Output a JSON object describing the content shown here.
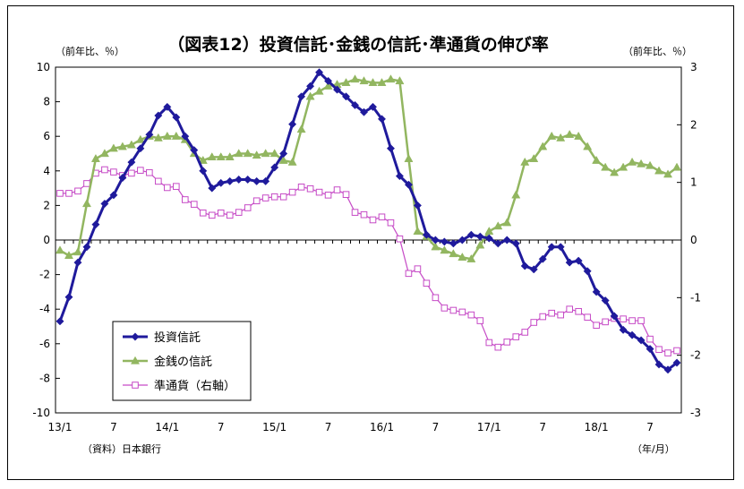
{
  "chart_data": {
    "type": "line",
    "title": "（図表12）投資信託･金銭の信託･準通貨の伸び率",
    "left_axis_unit": "（前年比、％）",
    "right_axis_unit": "（前年比、％）",
    "x_axis_unit": "（年/月）",
    "source": "（資料）日本銀行",
    "x_tick_labels": [
      "13/1",
      "7",
      "14/1",
      "7",
      "15/1",
      "7",
      "16/1",
      "7",
      "17/1",
      "7",
      "18/1",
      "7"
    ],
    "left_ylim": [
      -10,
      10
    ],
    "left_yticks": [
      "10",
      "8",
      "6",
      "4",
      "2",
      "0",
      "-2",
      "-4",
      "-6",
      "-8",
      "-10"
    ],
    "right_ylim": [
      -3,
      3
    ],
    "right_yticks": [
      "3",
      "2",
      "1",
      "0",
      "-1",
      "-2",
      "-3"
    ],
    "legend": {
      "placement": "lower-left inside"
    },
    "series": [
      {
        "name": "投資信託",
        "axis": "left",
        "color": "#1f1a9c",
        "marker": "diamond",
        "values": [
          -4.7,
          -3.3,
          -1.3,
          -0.4,
          0.9,
          2.1,
          2.6,
          3.6,
          4.5,
          5.3,
          6.1,
          7.2,
          7.7,
          7.1,
          6.0,
          5.2,
          4.0,
          3.0,
          3.3,
          3.4,
          3.5,
          3.5,
          3.4,
          3.4,
          4.2,
          5.0,
          6.7,
          8.3,
          8.9,
          9.7,
          9.2,
          8.7,
          8.3,
          7.8,
          7.4,
          7.7,
          7.0,
          5.3,
          3.7,
          3.2,
          2.0,
          0.3,
          0.0,
          -0.1,
          -0.2,
          0.0,
          0.3,
          0.2,
          0.1,
          -0.2,
          0.0,
          -0.2,
          -1.5,
          -1.7,
          -1.1,
          -0.4,
          -0.4,
          -1.3,
          -1.2,
          -1.8,
          -3.0,
          -3.5,
          -4.4,
          -5.2,
          -5.5,
          -5.8,
          -6.3,
          -7.2,
          -7.5,
          -7.1
        ]
      },
      {
        "name": "金銭の信託",
        "axis": "left",
        "color": "#92b660",
        "marker": "triangle",
        "values": [
          -0.6,
          -0.9,
          -0.7,
          2.1,
          4.7,
          5.0,
          5.3,
          5.4,
          5.5,
          5.8,
          6.0,
          5.9,
          6.0,
          6.0,
          5.8,
          5.0,
          4.6,
          4.8,
          4.8,
          4.8,
          5.0,
          5.0,
          4.9,
          5.0,
          5.0,
          4.6,
          4.5,
          6.4,
          8.3,
          8.6,
          8.9,
          9.0,
          9.1,
          9.3,
          9.2,
          9.1,
          9.1,
          9.3,
          9.2,
          4.7,
          0.5,
          0.2,
          -0.4,
          -0.6,
          -0.8,
          -1.0,
          -1.1,
          -0.3,
          0.5,
          0.8,
          1.0,
          2.6,
          4.5,
          4.7,
          5.4,
          6.0,
          5.9,
          6.1,
          6.0,
          5.4,
          4.6,
          4.2,
          3.9,
          4.2,
          4.5,
          4.4,
          4.3,
          4.0,
          3.8,
          4.2
        ]
      },
      {
        "name": "準通貨（右軸）",
        "axis": "right",
        "color": "#c64bc6",
        "marker": "square-open",
        "values": [
          0.81,
          0.81,
          0.85,
          0.98,
          1.16,
          1.22,
          1.18,
          1.12,
          1.16,
          1.21,
          1.17,
          1.02,
          0.91,
          0.93,
          0.7,
          0.62,
          0.47,
          0.43,
          0.47,
          0.43,
          0.48,
          0.56,
          0.68,
          0.73,
          0.75,
          0.75,
          0.83,
          0.92,
          0.89,
          0.83,
          0.78,
          0.87,
          0.79,
          0.48,
          0.44,
          0.35,
          0.4,
          0.3,
          0.02,
          -0.58,
          -0.5,
          -0.75,
          -1.0,
          -1.18,
          -1.22,
          -1.25,
          -1.3,
          -1.4,
          -1.78,
          -1.86,
          -1.77,
          -1.68,
          -1.6,
          -1.43,
          -1.33,
          -1.27,
          -1.3,
          -1.2,
          -1.24,
          -1.34,
          -1.48,
          -1.42,
          -1.36,
          -1.37,
          -1.4,
          -1.4,
          -1.72,
          -1.9,
          -1.96,
          -1.92
        ]
      }
    ]
  }
}
